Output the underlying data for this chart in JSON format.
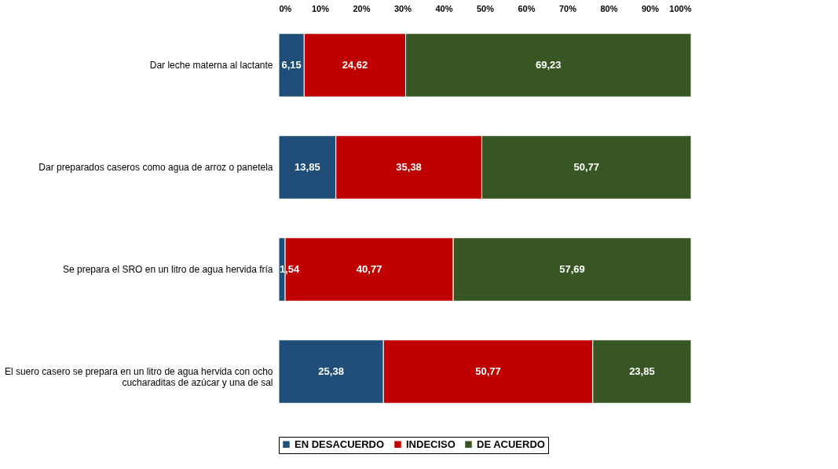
{
  "chart_data": {
    "type": "bar",
    "orientation": "horizontal",
    "stacked": true,
    "categories": [
      "Dar leche materna al lactante",
      "Dar preparados caseros como agua de arroz o panetela",
      "Se prepara el SRO en un litro de agua hervida fría",
      "El suero casero se prepara en un litro de agua hervida con ocho cucharaditas de azúcar y una de sal"
    ],
    "series": [
      {
        "name": "EN DESACUERDO",
        "color": "#1f4e79",
        "values": [
          6.15,
          13.85,
          1.54,
          25.38
        ],
        "value_labels": [
          "6,15",
          "13,85",
          "1,54",
          "25,38"
        ]
      },
      {
        "name": "INDECISO",
        "color": "#c00000",
        "values": [
          24.62,
          35.38,
          40.77,
          50.77
        ],
        "value_labels": [
          "24,62",
          "35,38",
          "40,77",
          "50,77"
        ]
      },
      {
        "name": "DE ACUERDO",
        "color": "#375623",
        "values": [
          69.23,
          50.77,
          57.69,
          23.85
        ],
        "value_labels": [
          "69,23",
          "50,77",
          "57,69",
          "23,85"
        ]
      }
    ],
    "xlim": [
      0,
      100
    ],
    "xticks": [
      {
        "value": 0,
        "label": "0%"
      },
      {
        "value": 10,
        "label": "10%"
      },
      {
        "value": 20,
        "label": "20%"
      },
      {
        "value": 30,
        "label": "30%"
      },
      {
        "value": 40,
        "label": "40%"
      },
      {
        "value": 50,
        "label": "50%"
      },
      {
        "value": 60,
        "label": "60%"
      },
      {
        "value": 70,
        "label": "70%"
      },
      {
        "value": 80,
        "label": "80%"
      },
      {
        "value": 90,
        "label": "90%"
      },
      {
        "value": 100,
        "label": "100%"
      }
    ],
    "grid": false,
    "legend": "bottom"
  }
}
